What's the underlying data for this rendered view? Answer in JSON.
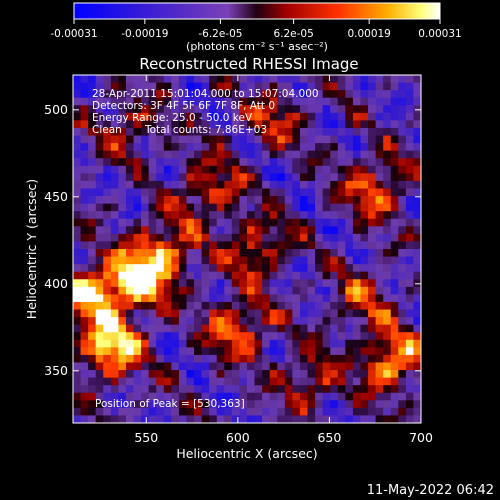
{
  "chart_data": {
    "type": "heatmap",
    "title": "Reconstructed RHESSI Image",
    "xlabel": "Heliocentric X (arcsec)",
    "ylabel": "Heliocentric Y (arcsec)",
    "xlim": [
      510,
      700
    ],
    "ylim": [
      320,
      520
    ],
    "x_ticks": [
      550,
      600,
      650,
      700
    ],
    "y_ticks": [
      350,
      400,
      450,
      500
    ],
    "colorbar": {
      "range": [
        -0.00031,
        0.00031
      ],
      "tick_labels": [
        "-0.00031",
        "-0.00019",
        "-6.2e-05",
        "6.2e-05",
        "0.00019",
        "0.00031"
      ],
      "unit_label": "(photons cm⁻² s⁻¹ asec⁻²)",
      "colormap": "hot-with-negative-blue-purple"
    },
    "annotations": {
      "time": "28-Apr-2011 15:01:04.000 to 15:07:04.000",
      "detectors": "Detectors: 3F 4F 5F 6F 7F 8F, Att 0",
      "energy": "Energy Range: 25.0 - 50.0 keV",
      "clean": "Clean",
      "counts": "Total counts: 7.86E+03",
      "peak": "Position of Peak = [530,363]"
    },
    "peak": [
      530,
      363
    ],
    "bright_sources": [
      {
        "x": 545,
        "y": 402,
        "level": 1.0
      },
      {
        "x": 530,
        "y": 363,
        "level": 1.0
      },
      {
        "x": 520,
        "y": 395,
        "level": 0.8
      },
      {
        "x": 560,
        "y": 420,
        "level": 0.7
      },
      {
        "x": 600,
        "y": 375,
        "level": 0.7
      },
      {
        "x": 610,
        "y": 420,
        "level": 0.6
      },
      {
        "x": 585,
        "y": 455,
        "level": 0.6
      },
      {
        "x": 675,
        "y": 455,
        "level": 0.7
      },
      {
        "x": 685,
        "y": 355,
        "level": 0.85
      },
      {
        "x": 540,
        "y": 490,
        "level": 0.45
      },
      {
        "x": 620,
        "y": 495,
        "level": 0.45
      },
      {
        "x": 668,
        "y": 390,
        "level": 0.5
      },
      {
        "x": 640,
        "y": 345,
        "level": 0.5
      }
    ],
    "footer_date": "11-May-2022 06:42"
  },
  "colors": {
    "negative_dark": "#0000ff",
    "negative_mid": "#5a2aa8",
    "zero": "#000000",
    "low": "#8b0000",
    "mid": "#ff4000",
    "high": "#ffff60",
    "top": "#ffffff"
  }
}
